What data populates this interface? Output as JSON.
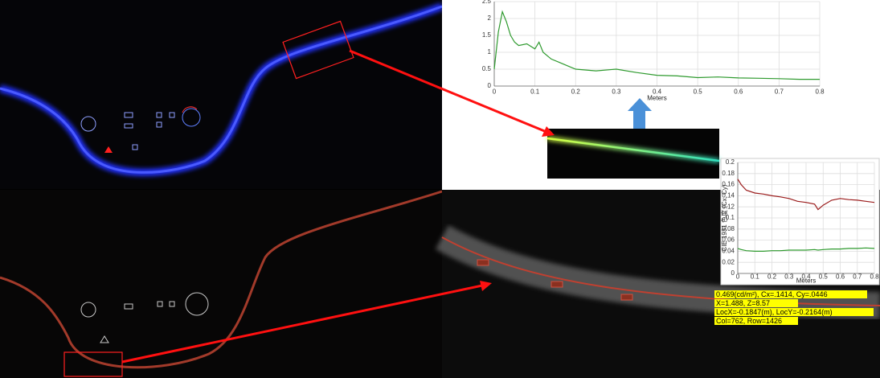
{
  "chart_data": [
    {
      "type": "line",
      "xlabel": "Meters",
      "x": [
        0,
        0.01,
        0.02,
        0.03,
        0.04,
        0.05,
        0.06,
        0.08,
        0.1,
        0.11,
        0.12,
        0.14,
        0.16,
        0.18,
        0.2,
        0.25,
        0.3,
        0.35,
        0.4,
        0.45,
        0.5,
        0.55,
        0.6,
        0.65,
        0.7,
        0.75,
        0.8
      ],
      "series": [
        {
          "color": "#2e9a2e",
          "values": [
            0.5,
            1.6,
            2.2,
            1.9,
            1.5,
            1.3,
            1.2,
            1.25,
            1.1,
            1.3,
            1.0,
            0.8,
            0.7,
            0.6,
            0.5,
            0.45,
            0.5,
            0.4,
            0.32,
            0.3,
            0.25,
            0.27,
            0.24,
            0.23,
            0.22,
            0.2,
            0.2
          ]
        }
      ],
      "xlim": [
        0,
        0.8
      ],
      "ylim": [
        0,
        2.5
      ],
      "xticks": [
        0,
        0.1,
        0.2,
        0.3,
        0.4,
        0.5,
        0.6,
        0.7,
        0.8
      ],
      "yticks": [
        0,
        0.5,
        1,
        1.5,
        2,
        2.5
      ],
      "grid": true
    },
    {
      "type": "line",
      "xlabel": "Meters",
      "ylabel": "CIE 1931 色度 (Cx, Cy)",
      "x": [
        0,
        0.02,
        0.05,
        0.1,
        0.15,
        0.2,
        0.25,
        0.3,
        0.35,
        0.4,
        0.45,
        0.47,
        0.5,
        0.55,
        0.6,
        0.65,
        0.7,
        0.75,
        0.8
      ],
      "series": [
        {
          "color": "#9b1c1c",
          "values": [
            0.17,
            0.16,
            0.15,
            0.145,
            0.143,
            0.14,
            0.138,
            0.135,
            0.13,
            0.128,
            0.125,
            0.115,
            0.123,
            0.132,
            0.135,
            0.133,
            0.132,
            0.13,
            0.128
          ]
        },
        {
          "color": "#2e9a2e",
          "values": [
            0.045,
            0.043,
            0.041,
            0.04,
            0.04,
            0.041,
            0.041,
            0.042,
            0.042,
            0.042,
            0.043,
            0.042,
            0.043,
            0.044,
            0.044,
            0.045,
            0.045,
            0.046,
            0.045
          ]
        }
      ],
      "xlim": [
        0,
        0.8
      ],
      "ylim": [
        0,
        0.2
      ],
      "xticks": [
        0,
        0.1,
        0.2,
        0.3,
        0.4,
        0.5,
        0.6,
        0.7,
        0.8
      ],
      "yticks": [
        0,
        0.02,
        0.04,
        0.06,
        0.08,
        0.1,
        0.12,
        0.14,
        0.16,
        0.18,
        0.2
      ],
      "grid": true
    }
  ],
  "annotations": [
    "0.469(cd/m²), Cx=.1414, Cy=.0446",
    "X=1.488, Z=8.57",
    "LocX=-0.1847(m), LocY=-0.2164(m)",
    "Col=762, Row=1426"
  ]
}
